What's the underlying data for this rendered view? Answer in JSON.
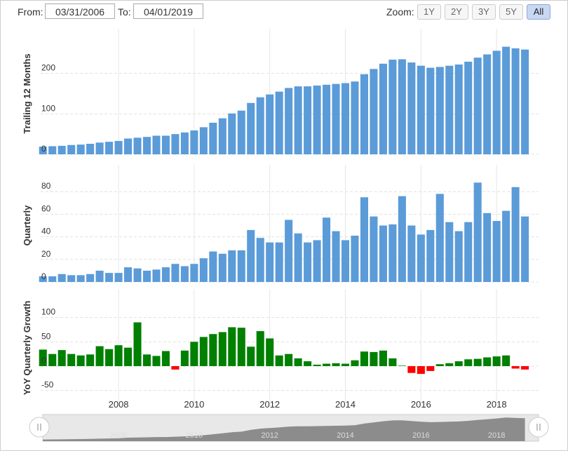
{
  "controls": {
    "from_label": "From:",
    "from_date": "03/31/2006",
    "to_label": "To:",
    "to_date": "04/01/2019",
    "zoom_label": "Zoom:",
    "zoom_buttons": [
      "1Y",
      "2Y",
      "3Y",
      "5Y",
      "All"
    ],
    "active_zoom": "All"
  },
  "chart_data": [
    {
      "type": "bar",
      "y_label": "Trailing 12 Months",
      "x": [
        2006,
        2006.25,
        2006.5,
        2006.75,
        2007,
        2007.25,
        2007.5,
        2007.75,
        2008,
        2008.25,
        2008.5,
        2008.75,
        2009,
        2009.25,
        2009.5,
        2009.75,
        2010,
        2010.25,
        2010.5,
        2010.75,
        2011,
        2011.25,
        2011.5,
        2011.75,
        2012,
        2012.25,
        2012.5,
        2012.75,
        2013,
        2013.25,
        2013.5,
        2013.75,
        2014,
        2014.25,
        2014.5,
        2014.75,
        2015,
        2015.25,
        2015.5,
        2015.75,
        2016,
        2016.25,
        2016.5,
        2016.75,
        2017,
        2017.25,
        2017.5,
        2017.75,
        2018,
        2018.25,
        2018.5,
        2018.75
      ],
      "xlim": [
        2005.94,
        2019.11
      ],
      "xticks": [
        2008,
        2010,
        2012,
        2014,
        2016,
        2018
      ],
      "ylim": [
        0,
        300
      ],
      "yticks": [
        0,
        100,
        200
      ],
      "grid": true,
      "series": [
        {
          "name": "Trailing 12 Months",
          "color": "#5b9bd8",
          "values": [
            19,
            20,
            21,
            23,
            24,
            26,
            29,
            31,
            33,
            39,
            41,
            43,
            46,
            46,
            50,
            54,
            59,
            67,
            78,
            89,
            101,
            108,
            127,
            141,
            148,
            155,
            164,
            168,
            168,
            170,
            172,
            174,
            176,
            180,
            198,
            211,
            224,
            234,
            235,
            227,
            219,
            214,
            216,
            219,
            222,
            229,
            239,
            247,
            256,
            266,
            262,
            259
          ]
        }
      ]
    },
    {
      "type": "bar",
      "y_label": "Quarterly",
      "x": [
        2006,
        2006.25,
        2006.5,
        2006.75,
        2007,
        2007.25,
        2007.5,
        2007.75,
        2008,
        2008.25,
        2008.5,
        2008.75,
        2009,
        2009.25,
        2009.5,
        2009.75,
        2010,
        2010.25,
        2010.5,
        2010.75,
        2011,
        2011.25,
        2011.5,
        2011.75,
        2012,
        2012.25,
        2012.5,
        2012.75,
        2013,
        2013.25,
        2013.5,
        2013.75,
        2014,
        2014.25,
        2014.5,
        2014.75,
        2015,
        2015.25,
        2015.5,
        2015.75,
        2016,
        2016.25,
        2016.5,
        2016.75,
        2017,
        2017.25,
        2017.5,
        2017.75,
        2018,
        2018.25,
        2018.5,
        2018.75
      ],
      "xlim": [
        2005.94,
        2019.11
      ],
      "xticks": [
        2008,
        2010,
        2012,
        2014,
        2016,
        2018
      ],
      "ylim": [
        0,
        100
      ],
      "yticks": [
        0,
        20,
        40,
        60,
        80
      ],
      "grid": true,
      "series": [
        {
          "name": "Quarterly",
          "color": "#5b9bd8",
          "values": [
            5,
            5,
            7,
            6,
            6,
            7,
            10,
            8,
            8,
            13,
            12,
            10,
            11,
            13,
            16,
            14,
            16,
            21,
            27,
            25,
            28,
            28,
            46,
            39,
            35,
            35,
            55,
            43,
            35,
            37,
            57,
            45,
            37,
            41,
            75,
            58,
            50,
            51,
            76,
            50,
            42,
            46,
            78,
            53,
            45,
            53,
            88,
            61,
            54,
            63,
            84,
            58
          ]
        }
      ]
    },
    {
      "type": "bar",
      "y_label": "YoY Quarterly Growth",
      "x": [
        2006,
        2006.25,
        2006.5,
        2006.75,
        2007,
        2007.25,
        2007.5,
        2007.75,
        2008,
        2008.25,
        2008.5,
        2008.75,
        2009,
        2009.25,
        2009.5,
        2009.75,
        2010,
        2010.25,
        2010.5,
        2010.75,
        2011,
        2011.25,
        2011.5,
        2011.75,
        2012,
        2012.25,
        2012.5,
        2012.75,
        2013,
        2013.25,
        2013.5,
        2013.75,
        2014,
        2014.25,
        2014.5,
        2014.75,
        2015,
        2015.25,
        2015.5,
        2015.75,
        2016,
        2016.25,
        2016.5,
        2016.75,
        2017,
        2017.25,
        2017.5,
        2017.75,
        2018,
        2018.25,
        2018.5,
        2018.75
      ],
      "xlim": [
        2005.94,
        2019.11
      ],
      "xticks": [
        2008,
        2010,
        2012,
        2014,
        2016,
        2018
      ],
      "ylim": [
        -75,
        150
      ],
      "yticks": [
        -50,
        0,
        50,
        100
      ],
      "grid": true,
      "series": [
        {
          "name": "YoY Quarterly Growth",
          "color": "#008000",
          "negative_color": "#ff0000",
          "values": [
            34,
            25,
            33,
            25,
            22,
            24,
            41,
            35,
            43,
            38,
            90,
            24,
            21,
            31,
            -7,
            32,
            50,
            60,
            66,
            70,
            80,
            79,
            40,
            72,
            57,
            22,
            25,
            16,
            10,
            3,
            5,
            6,
            5,
            12,
            30,
            29,
            32,
            16,
            1,
            -14,
            -16,
            -10,
            4,
            6,
            10,
            14,
            15,
            18,
            20,
            22,
            -5,
            -7
          ]
        }
      ]
    }
  ]
}
